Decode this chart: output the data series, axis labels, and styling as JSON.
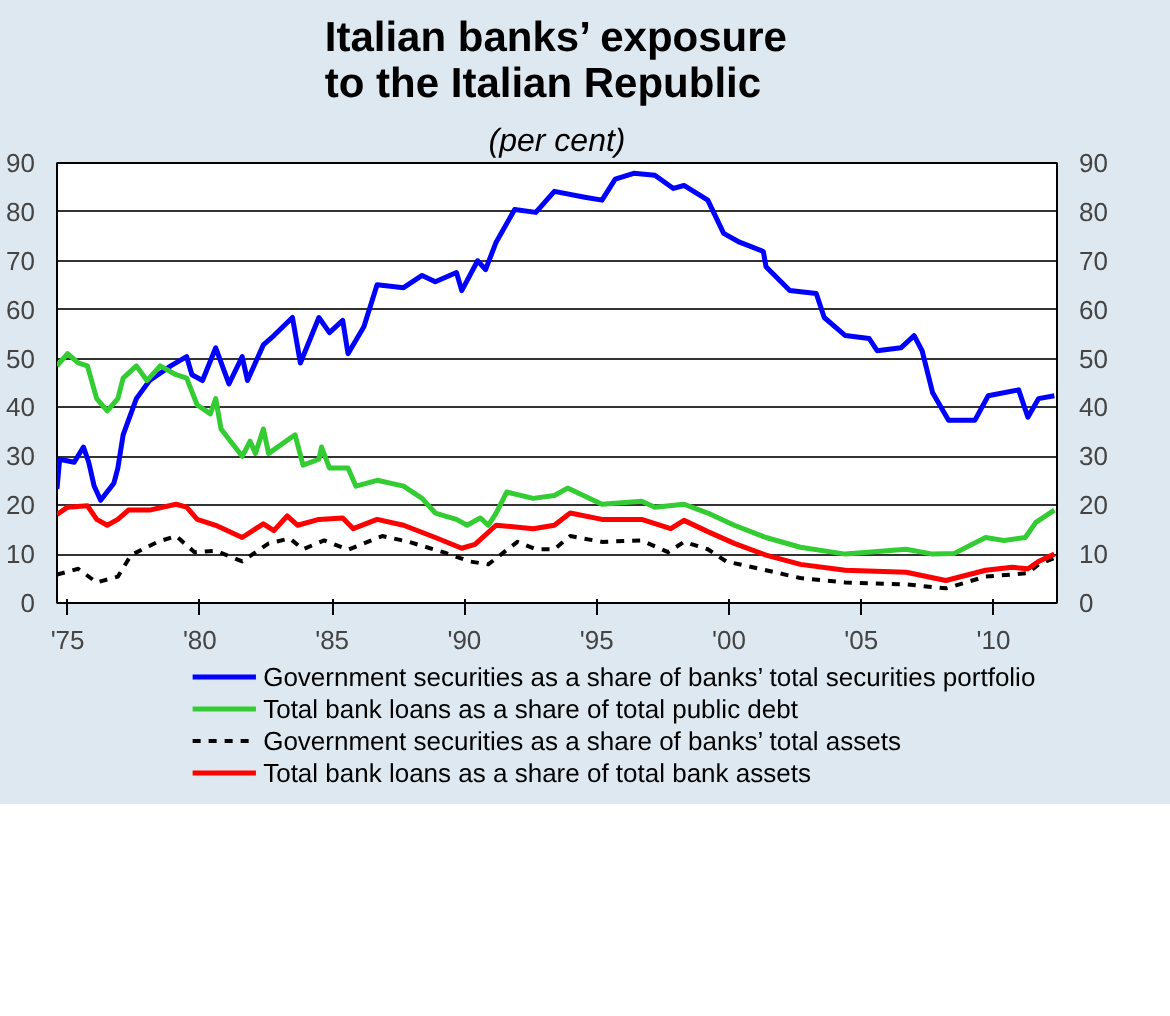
{
  "chart_data": {
    "type": "line",
    "title": "Italian banks’ exposure\nto the Italian Republic",
    "subtitle": "(per cent)",
    "xlim": [
      1974.6,
      2012.4
    ],
    "xticks": [
      {
        "value": 1975,
        "label": "'75"
      },
      {
        "value": 1980,
        "label": "'80"
      },
      {
        "value": 1985,
        "label": "'85"
      },
      {
        "value": 1990,
        "label": "'90"
      },
      {
        "value": 1995,
        "label": "'95"
      },
      {
        "value": 2000,
        "label": "'00"
      },
      {
        "value": 2005,
        "label": "'05"
      },
      {
        "value": 2010,
        "label": "'10"
      }
    ],
    "ylim": [
      0,
      90
    ],
    "yticks": [
      0,
      10,
      20,
      30,
      40,
      50,
      60,
      70,
      80,
      90
    ],
    "y2lim": [
      0,
      90
    ],
    "y2ticks": [
      0,
      10,
      20,
      30,
      40,
      50,
      60,
      70,
      80,
      90
    ],
    "grid": "y",
    "legend": "bottom",
    "marker": "none",
    "series": [
      {
        "name": "Government securities as a share of banks’ total securities portfolio",
        "color": "#0000ff",
        "line_style": "solid",
        "x": [
          1974.6,
          1974.7,
          1975.25,
          1975.6,
          1975.8,
          1976.0,
          1976.25,
          1976.75,
          1976.9,
          1977.1,
          1977.6,
          1978.1,
          1978.9,
          1979.5,
          1979.7,
          1980.1,
          1980.6,
          1981.1,
          1981.6,
          1981.8,
          1982.4,
          1982.8,
          1983.5,
          1983.8,
          1984.5,
          1984.9,
          1985.4,
          1985.6,
          1986.2,
          1986.7,
          1987.7,
          1988.4,
          1988.9,
          1989.7,
          1989.9,
          1990.5,
          1990.8,
          1991.2,
          1991.9,
          1992.7,
          1993.4,
          1994.55,
          1995.2,
          1995.7,
          1996.4,
          1997.2,
          1997.9,
          1998.3,
          1999.2,
          1999.8,
          2000.4,
          2001.3,
          2001.4,
          2002.3,
          2003.3,
          2003.6,
          2004.4,
          2005.3,
          2005.6,
          2006.5,
          2007.0,
          2007.3,
          2007.7,
          2008.3,
          2009.3,
          2009.8,
          2010.95,
          2011.3,
          2011.7,
          2012.3
        ],
        "values": [
          23.3,
          29.4,
          28.8,
          31.9,
          28.8,
          24,
          21,
          24.5,
          27.6,
          34.4,
          41.8,
          45.5,
          48.5,
          50.4,
          46.7,
          45.5,
          52.2,
          44.8,
          50.4,
          45.5,
          52.8,
          54.7,
          58.4,
          49.1,
          58.4,
          55.3,
          57.8,
          51,
          56.5,
          65.1,
          64.5,
          67,
          65.7,
          67.6,
          63.9,
          70,
          68.2,
          73.8,
          80.5,
          79.9,
          84.2,
          83,
          82.4,
          86.7,
          87.9,
          87.5,
          84.8,
          85.4,
          82.4,
          75.6,
          73.8,
          71.9,
          68.8,
          63.9,
          63.3,
          58.4,
          54.7,
          54.1,
          51.6,
          52.2,
          54.7,
          51.6,
          43,
          37.4,
          37.4,
          42.4,
          43.6,
          38,
          41.8,
          42.4
        ]
      },
      {
        "name": "Total bank loans as a share of total public debt",
        "color": "#33cc33",
        "line_style": "solid",
        "x": [
          1974.6,
          1975.0,
          1975.4,
          1975.75,
          1976.1,
          1976.5,
          1976.9,
          1977.1,
          1977.6,
          1978.0,
          1978.5,
          1979.1,
          1979.5,
          1979.9,
          1980.4,
          1980.6,
          1980.8,
          1981.6,
          1981.9,
          1982.1,
          1982.4,
          1982.6,
          1983.6,
          1983.9,
          1984.5,
          1984.6,
          1984.9,
          1985.6,
          1985.9,
          1986.7,
          1987.7,
          1988.4,
          1988.9,
          1989.7,
          1990.1,
          1990.6,
          1990.9,
          1991.2,
          1991.6,
          1992.6,
          1993.4,
          1993.9,
          1995.2,
          1996.7,
          1997.2,
          1998.3,
          1999.2,
          2000.2,
          2001.4,
          2002.7,
          2004.4,
          2006.7,
          2007.7,
          2008.5,
          2009.7,
          2010.4,
          2011.2,
          2011.6,
          2012.3
        ],
        "values": [
          48.5,
          51,
          49.1,
          48.5,
          41.8,
          39.3,
          41.8,
          46,
          48.5,
          45.5,
          48.5,
          46.7,
          46,
          40.5,
          38.7,
          41.8,
          35.6,
          30,
          33.1,
          30.6,
          35.6,
          30.6,
          34.4,
          28.2,
          29.4,
          31.9,
          27.6,
          27.6,
          23.9,
          25.1,
          23.9,
          21.4,
          18.4,
          17.1,
          15.9,
          17.4,
          15.9,
          18.4,
          22.7,
          21.4,
          22,
          23.5,
          20.2,
          20.8,
          19.6,
          20.2,
          18.4,
          15.9,
          13.4,
          11.4,
          10,
          11,
          10,
          10.1,
          13.4,
          12.8,
          13.4,
          16.5,
          19
        ]
      },
      {
        "name": "Government securities as a share of banks’ total assets",
        "color": "#000000",
        "line_style": "dashed",
        "x": [
          1974.6,
          1975.4,
          1976.1,
          1976.9,
          1977.4,
          1978.4,
          1979.1,
          1979.8,
          1980.6,
          1981.6,
          1982.6,
          1983.4,
          1983.9,
          1984.7,
          1985.6,
          1986.9,
          1987.9,
          1989.2,
          1990.2,
          1990.9,
          1992.0,
          1992.7,
          1993.4,
          1994.0,
          1995.2,
          1996.7,
          1997.7,
          1998.3,
          1999.2,
          1999.9,
          2001.4,
          2002.7,
          2004.4,
          2006.7,
          2008.2,
          2009.7,
          2011.3,
          2011.7,
          2012.3
        ],
        "values": [
          5.8,
          7,
          4.2,
          5.4,
          9.8,
          12.5,
          13.7,
          10.4,
          10.7,
          8.5,
          12.2,
          13.2,
          11,
          12.8,
          10.9,
          13.7,
          12.5,
          10.4,
          8.5,
          7.9,
          12.5,
          11,
          11,
          13.7,
          12.5,
          12.8,
          10.4,
          12.5,
          11,
          8.5,
          6.7,
          5.1,
          4.2,
          3.8,
          3,
          5.4,
          6.1,
          7.9,
          9.2
        ]
      },
      {
        "name": "Total bank loans as a share of total bank assets",
        "color": "#ff0000",
        "line_style": "solid",
        "x": [
          1974.6,
          1975.0,
          1975.75,
          1976.1,
          1976.5,
          1976.9,
          1977.3,
          1978.1,
          1979.1,
          1979.5,
          1979.9,
          1980.6,
          1981.6,
          1982.4,
          1982.8,
          1983.3,
          1983.7,
          1984.5,
          1985.4,
          1985.8,
          1986.7,
          1987.7,
          1988.9,
          1989.9,
          1990.4,
          1991.2,
          1992.6,
          1993.4,
          1994.0,
          1995.2,
          1996.7,
          1997.8,
          1998.3,
          1999.2,
          2000.2,
          2001.4,
          2002.7,
          2004.4,
          2006.7,
          2008.2,
          2009.7,
          2010.7,
          2011.3,
          2011.7,
          2012.3
        ],
        "values": [
          18.1,
          19.6,
          19.9,
          17.1,
          15.9,
          17.1,
          19,
          19,
          20.2,
          19.6,
          17.1,
          15.9,
          13.4,
          16.2,
          14.8,
          17.8,
          15.9,
          17.1,
          17.4,
          15.2,
          17.1,
          15.9,
          13.4,
          11.2,
          12,
          15.9,
          15.2,
          15.9,
          18.4,
          17.1,
          17.1,
          15.2,
          16.9,
          14.6,
          12.2,
          9.8,
          7.9,
          6.7,
          6.3,
          4.6,
          6.7,
          7.3,
          7,
          8.5,
          10
        ]
      }
    ]
  }
}
